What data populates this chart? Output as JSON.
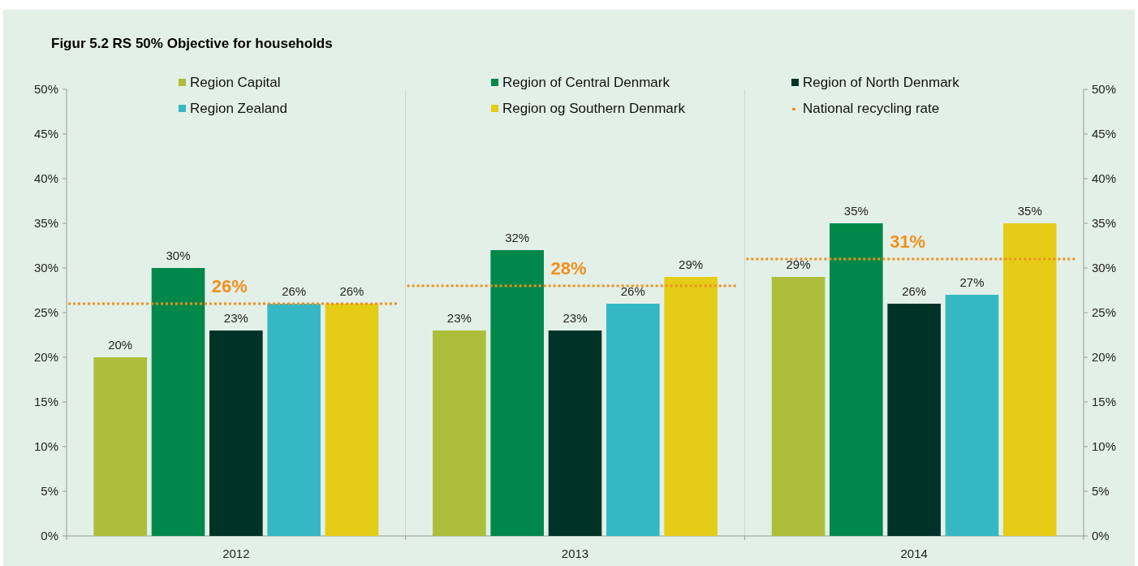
{
  "chart_data": {
    "type": "bar",
    "title": "Figur 5.2 RS 50% Objective for households",
    "categories": [
      "2012",
      "2013",
      "2014"
    ],
    "series": [
      {
        "name": "Region Capital",
        "color": "#adbe3a",
        "values": [
          20,
          23,
          29
        ],
        "value_labels": [
          "20%",
          "23%",
          "29%"
        ]
      },
      {
        "name": "Region of Central Denmark",
        "color": "#00884a",
        "values": [
          30,
          32,
          35
        ],
        "value_labels": [
          "30%",
          "32%",
          "35%"
        ]
      },
      {
        "name": "Region of North Denmark",
        "color": "#003328",
        "values": [
          23,
          23,
          26
        ],
        "value_labels": [
          "23%",
          "23%",
          "26%"
        ]
      },
      {
        "name": "Region Zealand",
        "color": "#35b8c4",
        "values": [
          26,
          26,
          27
        ],
        "value_labels": [
          "26%",
          "26%",
          "27%"
        ]
      },
      {
        "name": "Region og Southern Denmark",
        "color": "#e5cc17",
        "values": [
          26,
          29,
          35
        ],
        "value_labels": [
          "26%",
          "29%",
          "35%"
        ]
      }
    ],
    "ref_lines": [
      {
        "axis": "y",
        "value": 26,
        "label": "26%",
        "color": "#f0901e",
        "line_style": "dotted"
      },
      {
        "axis": "y",
        "value": 28,
        "label": "28%",
        "color": "#f0901e",
        "line_style": "dotted"
      },
      {
        "axis": "y",
        "value": 31,
        "label": "31%",
        "color": "#f0901e",
        "line_style": "dotted"
      }
    ],
    "annotations": [
      "National recycling rate"
    ],
    "ylim": [
      0,
      50
    ],
    "yticks": [
      {
        "value": 0,
        "label": "0%"
      },
      {
        "value": 5,
        "label": "5%"
      },
      {
        "value": 10,
        "label": "10%"
      },
      {
        "value": 15,
        "label": "15%"
      },
      {
        "value": 20,
        "label": "20%"
      },
      {
        "value": 25,
        "label": "25%"
      },
      {
        "value": 30,
        "label": "30%"
      },
      {
        "value": 35,
        "label": "35%"
      },
      {
        "value": 40,
        "label": "40%"
      },
      {
        "value": 45,
        "label": "45%"
      },
      {
        "value": 50,
        "label": "50%"
      }
    ],
    "y2lim": [
      0,
      50
    ],
    "y2ticks": [
      {
        "value": 0,
        "label": "0%"
      },
      {
        "value": 5,
        "label": "5%"
      },
      {
        "value": 10,
        "label": "10%"
      },
      {
        "value": 15,
        "label": "15%"
      },
      {
        "value": 20,
        "label": "20%"
      },
      {
        "value": 25,
        "label": "25%"
      },
      {
        "value": 30,
        "label": "30%"
      },
      {
        "value": 35,
        "label": "35%"
      },
      {
        "value": 40,
        "label": "40%"
      },
      {
        "value": 45,
        "label": "45%"
      },
      {
        "value": 50,
        "label": "50%"
      }
    ],
    "grid": "x",
    "legend": "top"
  }
}
